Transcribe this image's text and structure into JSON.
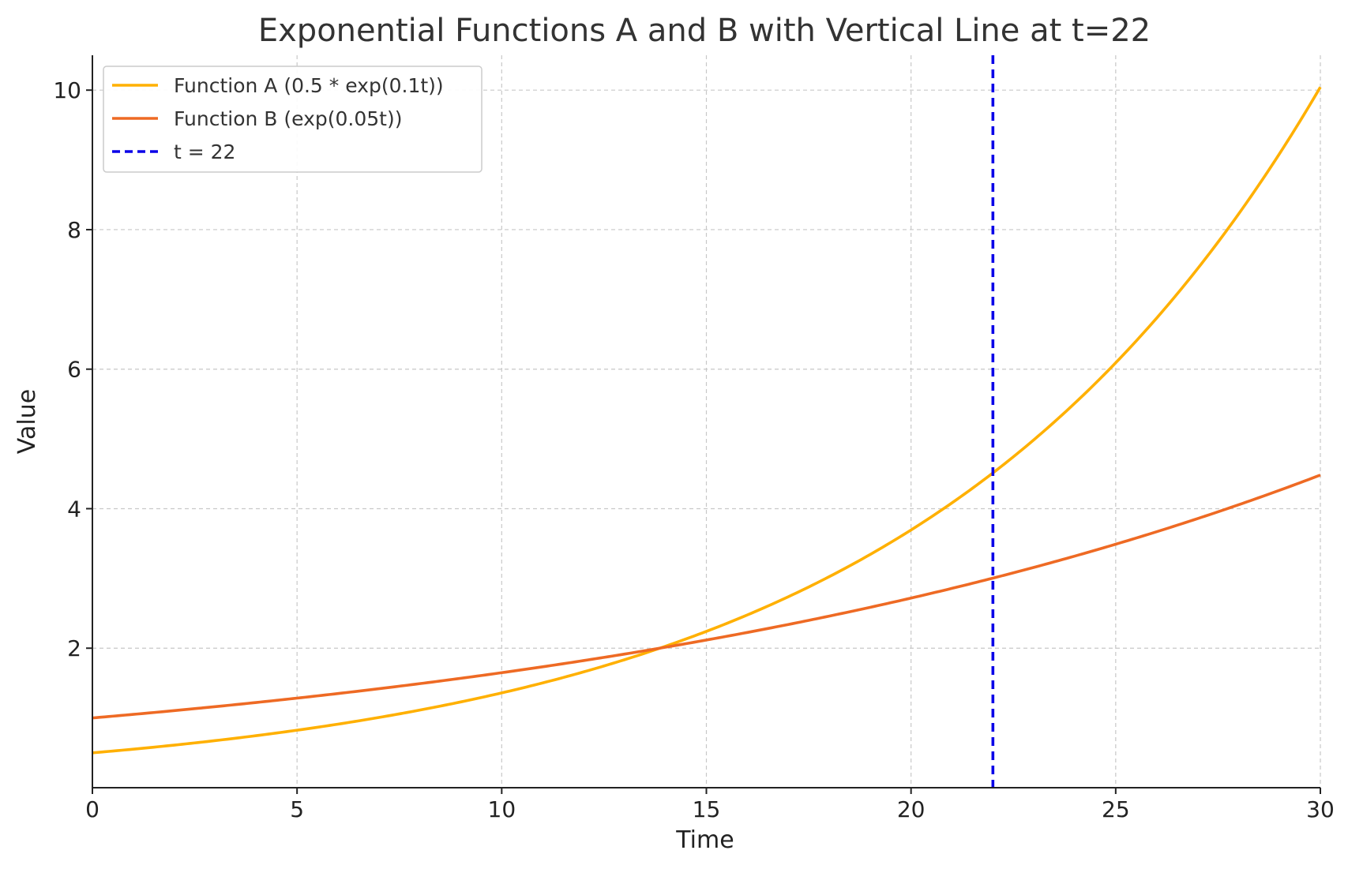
{
  "chart_data": {
    "type": "line",
    "title": "Exponential Functions A and B with Vertical Line at t=22",
    "xlabel": "Time",
    "ylabel": "Value",
    "xlim": [
      0,
      30
    ],
    "ylim": [
      0,
      10.5
    ],
    "xticks": [
      0,
      5,
      10,
      15,
      20,
      25,
      30
    ],
    "yticks": [
      2,
      4,
      6,
      8,
      10
    ],
    "grid": true,
    "legend_position": "top-left",
    "series": [
      {
        "name": "Function A (0.5 * exp(0.1t))",
        "color": "#FFB000",
        "style": "solid",
        "x": [
          0,
          2,
          4,
          6,
          8,
          10,
          12,
          14,
          16,
          18,
          20,
          22,
          24,
          26,
          28,
          30
        ],
        "y": [
          0.5,
          0.611,
          0.746,
          0.911,
          1.113,
          1.359,
          1.66,
          2.028,
          2.477,
          3.025,
          3.695,
          4.513,
          5.512,
          6.732,
          8.222,
          10.043
        ]
      },
      {
        "name": "Function B (exp(0.05t))",
        "color": "#EE6A24",
        "style": "solid",
        "x": [
          0,
          2,
          4,
          6,
          8,
          10,
          12,
          14,
          16,
          18,
          20,
          22,
          24,
          26,
          28,
          30
        ],
        "y": [
          1.0,
          1.105,
          1.221,
          1.35,
          1.492,
          1.649,
          1.822,
          2.014,
          2.226,
          2.46,
          2.718,
          3.004,
          3.32,
          3.669,
          4.055,
          4.482
        ]
      }
    ],
    "vlines": [
      {
        "name": "t = 22",
        "x": 22,
        "color": "#0A00E8",
        "style": "dashed"
      }
    ]
  }
}
